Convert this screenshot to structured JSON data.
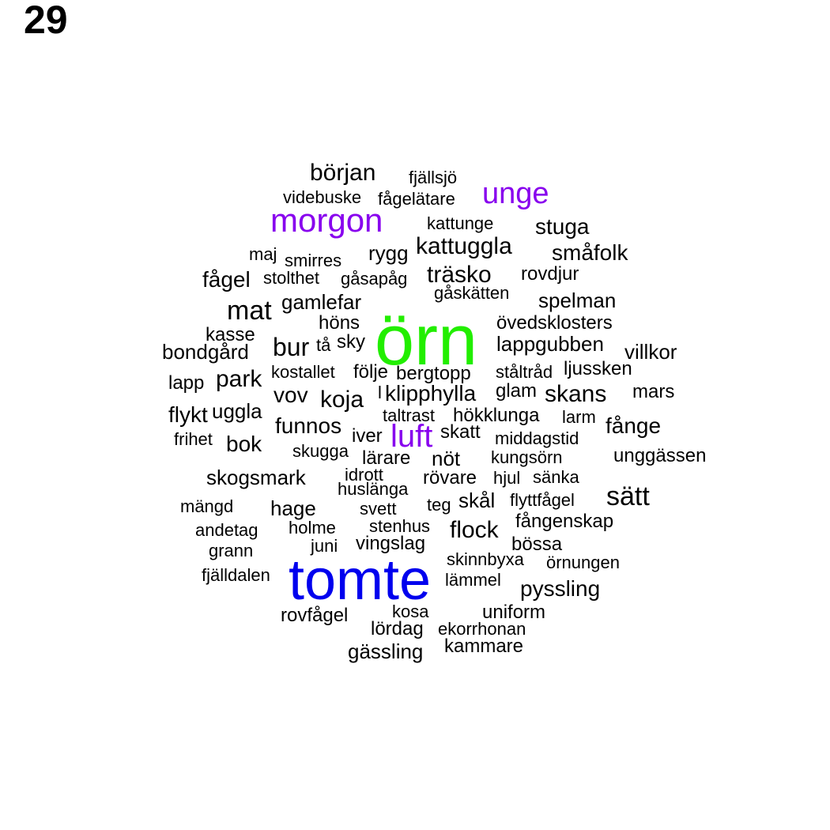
{
  "page_number": "29",
  "colors": {
    "default": "#000000",
    "rank1": "#22ee00",
    "rank2": "#0000ee",
    "rank3": "#8800ee"
  },
  "words": [
    {
      "text": "örn",
      "color": "rank1"
    },
    {
      "text": "tomte",
      "color": "rank2"
    },
    {
      "text": "morgon",
      "color": "rank3"
    },
    {
      "text": "unge",
      "color": "rank3"
    },
    {
      "text": "luft",
      "color": "rank3"
    },
    {
      "text": "början",
      "color": "default"
    },
    {
      "text": "fjällsjö",
      "color": "default"
    },
    {
      "text": "videbuske",
      "color": "default"
    },
    {
      "text": "fågelätare",
      "color": "default"
    },
    {
      "text": "kattunge",
      "color": "default"
    },
    {
      "text": "stuga",
      "color": "default"
    },
    {
      "text": "kattuggla",
      "color": "default"
    },
    {
      "text": "maj",
      "color": "default"
    },
    {
      "text": "smirres",
      "color": "default"
    },
    {
      "text": "rygg",
      "color": "default"
    },
    {
      "text": "småfolk",
      "color": "default"
    },
    {
      "text": "fågel",
      "color": "default"
    },
    {
      "text": "stolthet",
      "color": "default"
    },
    {
      "text": "gåsapåg",
      "color": "default"
    },
    {
      "text": "träsko",
      "color": "default"
    },
    {
      "text": "rovdjur",
      "color": "default"
    },
    {
      "text": "gåskätten",
      "color": "default"
    },
    {
      "text": "mat",
      "color": "default"
    },
    {
      "text": "gamlefar",
      "color": "default"
    },
    {
      "text": "spelman",
      "color": "default"
    },
    {
      "text": "höns",
      "color": "default"
    },
    {
      "text": "övedsklosters",
      "color": "default"
    },
    {
      "text": "kasse",
      "color": "default"
    },
    {
      "text": "bondgård",
      "color": "default"
    },
    {
      "text": "bur",
      "color": "default"
    },
    {
      "text": "tå",
      "color": "default"
    },
    {
      "text": "sky",
      "color": "default"
    },
    {
      "text": "lappgubben",
      "color": "default"
    },
    {
      "text": "villkor",
      "color": "default"
    },
    {
      "text": "kostallet",
      "color": "default"
    },
    {
      "text": "följe",
      "color": "default"
    },
    {
      "text": "bergtopp",
      "color": "default"
    },
    {
      "text": "ståltråd",
      "color": "default"
    },
    {
      "text": "ljussken",
      "color": "default"
    },
    {
      "text": "lapp",
      "color": "default"
    },
    {
      "text": "park",
      "color": "default"
    },
    {
      "text": "vov",
      "color": "default"
    },
    {
      "text": "koja",
      "color": "default"
    },
    {
      "text": "l",
      "color": "default"
    },
    {
      "text": "klipphylla",
      "color": "default"
    },
    {
      "text": "glam",
      "color": "default"
    },
    {
      "text": "skans",
      "color": "default"
    },
    {
      "text": "mars",
      "color": "default"
    },
    {
      "text": "flykt",
      "color": "default"
    },
    {
      "text": "uggla",
      "color": "default"
    },
    {
      "text": "taltrast",
      "color": "default"
    },
    {
      "text": "hökklunga",
      "color": "default"
    },
    {
      "text": "larm",
      "color": "default"
    },
    {
      "text": "funnos",
      "color": "default"
    },
    {
      "text": "fånge",
      "color": "default"
    },
    {
      "text": "frihet",
      "color": "default"
    },
    {
      "text": "bok",
      "color": "default"
    },
    {
      "text": "iver",
      "color": "default"
    },
    {
      "text": "skatt",
      "color": "default"
    },
    {
      "text": "middagstid",
      "color": "default"
    },
    {
      "text": "skugga",
      "color": "default"
    },
    {
      "text": "lärare",
      "color": "default"
    },
    {
      "text": "nöt",
      "color": "default"
    },
    {
      "text": "kungsörn",
      "color": "default"
    },
    {
      "text": "unggässen",
      "color": "default"
    },
    {
      "text": "skogsmark",
      "color": "default"
    },
    {
      "text": "idrott",
      "color": "default"
    },
    {
      "text": "rövare",
      "color": "default"
    },
    {
      "text": "hjul",
      "color": "default"
    },
    {
      "text": "sänka",
      "color": "default"
    },
    {
      "text": "huslänga",
      "color": "default"
    },
    {
      "text": "sätt",
      "color": "default"
    },
    {
      "text": "mängd",
      "color": "default"
    },
    {
      "text": "hage",
      "color": "default"
    },
    {
      "text": "svett",
      "color": "default"
    },
    {
      "text": "teg",
      "color": "default"
    },
    {
      "text": "skål",
      "color": "default"
    },
    {
      "text": "flyttfågel",
      "color": "default"
    },
    {
      "text": "fångenskap",
      "color": "default"
    },
    {
      "text": "andetag",
      "color": "default"
    },
    {
      "text": "holme",
      "color": "default"
    },
    {
      "text": "stenhus",
      "color": "default"
    },
    {
      "text": "flock",
      "color": "default"
    },
    {
      "text": "grann",
      "color": "default"
    },
    {
      "text": "juni",
      "color": "default"
    },
    {
      "text": "vingslag",
      "color": "default"
    },
    {
      "text": "bössa",
      "color": "default"
    },
    {
      "text": "skinnbyxa",
      "color": "default"
    },
    {
      "text": "örnungen",
      "color": "default"
    },
    {
      "text": "fjälldalen",
      "color": "default"
    },
    {
      "text": "lämmel",
      "color": "default"
    },
    {
      "text": "pyssling",
      "color": "default"
    },
    {
      "text": "kosa",
      "color": "default"
    },
    {
      "text": "uniform",
      "color": "default"
    },
    {
      "text": "rovfågel",
      "color": "default"
    },
    {
      "text": "lördag",
      "color": "default"
    },
    {
      "text": "ekorrhonan",
      "color": "default"
    },
    {
      "text": "gässling",
      "color": "default"
    },
    {
      "text": "kammare",
      "color": "default"
    }
  ]
}
